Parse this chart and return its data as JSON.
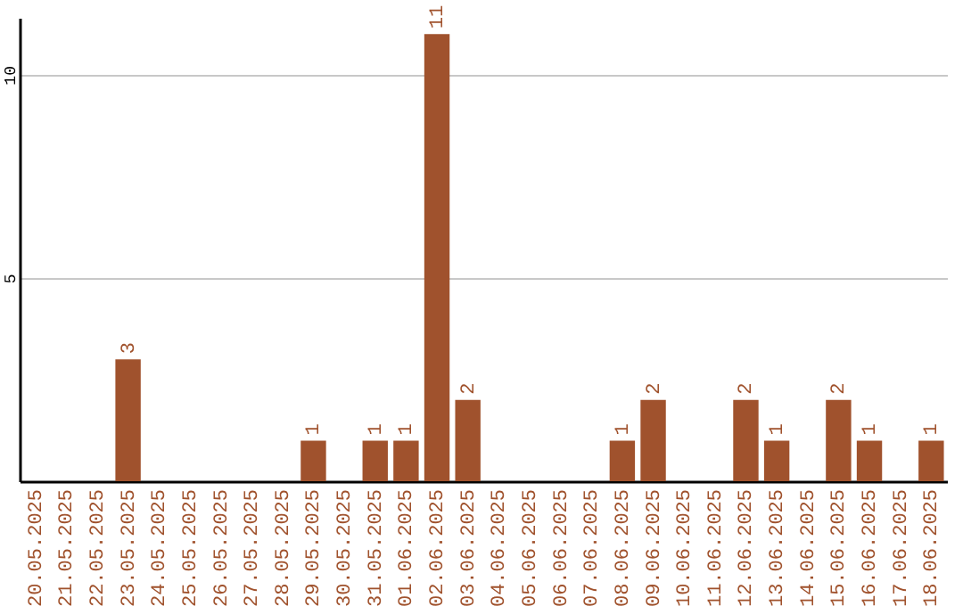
{
  "chart_data": {
    "type": "bar",
    "categories": [
      "20.05.2025",
      "21.05.2025",
      "22.05.2025",
      "23.05.2025",
      "24.05.2025",
      "25.05.2025",
      "26.05.2025",
      "27.05.2025",
      "28.05.2025",
      "29.05.2025",
      "30.05.2025",
      "31.05.2025",
      "01.06.2025",
      "02.06.2025",
      "03.06.2025",
      "04.06.2025",
      "05.06.2025",
      "06.06.2025",
      "07.06.2025",
      "08.06.2025",
      "09.06.2025",
      "10.06.2025",
      "11.06.2025",
      "12.06.2025",
      "13.06.2025",
      "14.06.2025",
      "15.06.2025",
      "16.06.2025",
      "17.06.2025",
      "18.06.2025"
    ],
    "values": [
      0,
      0,
      0,
      3,
      0,
      0,
      0,
      0,
      0,
      1,
      0,
      1,
      1,
      11,
      2,
      0,
      0,
      0,
      0,
      1,
      2,
      0,
      0,
      2,
      1,
      0,
      2,
      1,
      0,
      1
    ],
    "value_labels": [
      null,
      null,
      null,
      "3",
      null,
      null,
      null,
      null,
      null,
      "1",
      null,
      "1",
      "1",
      "11",
      "2",
      null,
      null,
      null,
      null,
      "1",
      "2",
      null,
      null,
      "2",
      "1",
      null,
      "2",
      "1",
      null,
      "1"
    ],
    "color": "#a0522d",
    "ylim": [
      0,
      11.4
    ],
    "yticks": [
      5,
      10
    ],
    "grid": "y"
  }
}
